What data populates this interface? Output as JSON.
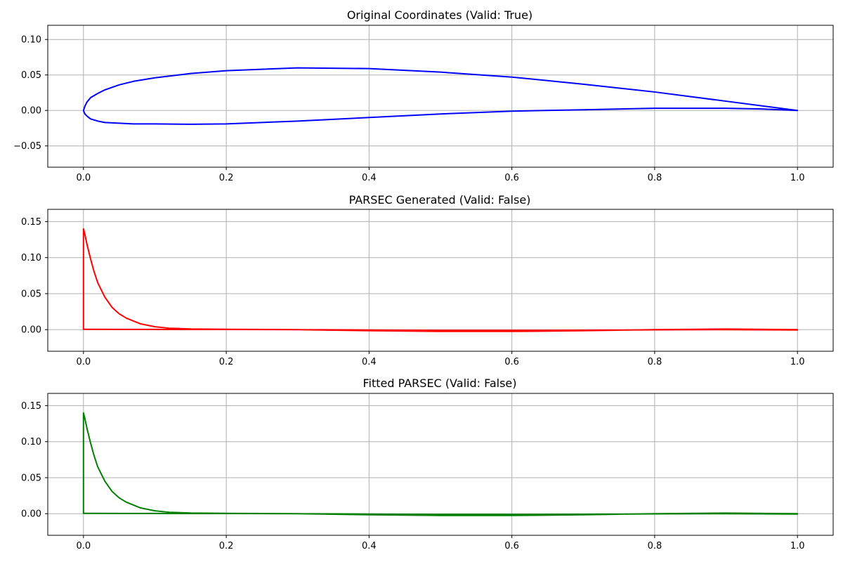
{
  "chart_data": [
    {
      "type": "line",
      "title": "Original Coordinates (Valid: True)",
      "xlabel": "",
      "ylabel": "",
      "xlim": [
        -0.05,
        1.05
      ],
      "ylim": [
        -0.08,
        0.12
      ],
      "xticks": [
        0.0,
        0.2,
        0.4,
        0.6,
        0.8,
        1.0
      ],
      "xtick_labels": [
        "0.0",
        "0.2",
        "0.4",
        "0.6",
        "0.8",
        "1.0"
      ],
      "yticks": [
        -0.05,
        0.0,
        0.05,
        0.1
      ],
      "ytick_labels": [
        "−0.05",
        "0.00",
        "0.05",
        "0.10"
      ],
      "grid": true,
      "series": [
        {
          "color": "#0000ff",
          "x": [
            1.0,
            0.9,
            0.8,
            0.7,
            0.6,
            0.5,
            0.4,
            0.3,
            0.2,
            0.15,
            0.1,
            0.07,
            0.05,
            0.03,
            0.02,
            0.01,
            0.005,
            0.002,
            0.0,
            0.002,
            0.005,
            0.01,
            0.02,
            0.03,
            0.05,
            0.07,
            0.1,
            0.15,
            0.2,
            0.3,
            0.4,
            0.5,
            0.6,
            0.7,
            0.8,
            0.85,
            0.9,
            0.95,
            1.0
          ],
          "y": [
            0.0,
            0.013,
            0.026,
            0.037,
            0.047,
            0.054,
            0.059,
            0.06,
            0.056,
            0.052,
            0.046,
            0.041,
            0.036,
            0.029,
            0.024,
            0.018,
            0.012,
            0.006,
            0.0,
            -0.005,
            -0.008,
            -0.012,
            -0.015,
            -0.017,
            -0.018,
            -0.019,
            -0.019,
            -0.0195,
            -0.019,
            -0.015,
            -0.01,
            -0.005,
            -0.001,
            0.001,
            0.003,
            0.003,
            0.003,
            0.002,
            0.0
          ]
        }
      ]
    },
    {
      "type": "line",
      "title": "PARSEC Generated (Valid: False)",
      "xlabel": "",
      "ylabel": "",
      "xlim": [
        -0.05,
        1.05
      ],
      "ylim": [
        -0.03,
        0.167
      ],
      "xticks": [
        0.0,
        0.2,
        0.4,
        0.6,
        0.8,
        1.0
      ],
      "xtick_labels": [
        "0.0",
        "0.2",
        "0.4",
        "0.6",
        "0.8",
        "1.0"
      ],
      "yticks": [
        0.0,
        0.05,
        0.1,
        0.15
      ],
      "ytick_labels": [
        "0.00",
        "0.05",
        "0.10",
        "0.15"
      ],
      "grid": true,
      "series": [
        {
          "color": "#ff0000",
          "x": [
            1.0,
            0.9,
            0.8,
            0.7,
            0.6,
            0.5,
            0.4,
            0.3,
            0.2,
            0.15,
            0.12,
            0.1,
            0.08,
            0.06,
            0.05,
            0.04,
            0.03,
            0.02,
            0.015,
            0.01,
            0.005,
            0.002,
            0.0,
            0.0,
            0.05,
            0.1,
            0.2,
            0.3,
            0.4,
            0.5,
            0.6,
            0.7,
            0.8,
            0.9,
            1.0
          ],
          "y": [
            0.0,
            0.0008,
            0.0,
            -0.0015,
            -0.0025,
            -0.0025,
            -0.0015,
            0.0,
            0.0005,
            0.001,
            0.002,
            0.004,
            0.008,
            0.016,
            0.022,
            0.031,
            0.045,
            0.065,
            0.08,
            0.098,
            0.118,
            0.132,
            0.14,
            0.0005,
            0.0004,
            0.0003,
            0.0002,
            0.0,
            -0.0005,
            -0.001,
            -0.001,
            -0.0008,
            -0.0003,
            0.0,
            -0.0005
          ]
        }
      ]
    },
    {
      "type": "line",
      "title": "Fitted PARSEC (Valid: False)",
      "xlabel": "",
      "ylabel": "",
      "xlim": [
        -0.05,
        1.05
      ],
      "ylim": [
        -0.03,
        0.167
      ],
      "xticks": [
        0.0,
        0.2,
        0.4,
        0.6,
        0.8,
        1.0
      ],
      "xtick_labels": [
        "0.0",
        "0.2",
        "0.4",
        "0.6",
        "0.8",
        "1.0"
      ],
      "yticks": [
        0.0,
        0.05,
        0.1,
        0.15
      ],
      "ytick_labels": [
        "0.00",
        "0.05",
        "0.10",
        "0.15"
      ],
      "grid": true,
      "series": [
        {
          "color": "#008000",
          "x": [
            1.0,
            0.9,
            0.8,
            0.7,
            0.6,
            0.5,
            0.4,
            0.3,
            0.2,
            0.15,
            0.12,
            0.1,
            0.08,
            0.06,
            0.05,
            0.04,
            0.03,
            0.02,
            0.015,
            0.01,
            0.005,
            0.002,
            0.0,
            0.0,
            0.05,
            0.1,
            0.2,
            0.3,
            0.4,
            0.5,
            0.6,
            0.7,
            0.8,
            0.9,
            1.0
          ],
          "y": [
            0.0,
            0.0008,
            0.0,
            -0.0015,
            -0.0025,
            -0.0025,
            -0.0015,
            0.0,
            0.0005,
            0.001,
            0.002,
            0.004,
            0.008,
            0.016,
            0.022,
            0.031,
            0.045,
            0.065,
            0.08,
            0.098,
            0.118,
            0.132,
            0.14,
            0.0005,
            0.0004,
            0.0003,
            0.0002,
            0.0,
            -0.0005,
            -0.001,
            -0.001,
            -0.0008,
            -0.0003,
            0.0,
            -0.0005
          ]
        }
      ]
    }
  ]
}
